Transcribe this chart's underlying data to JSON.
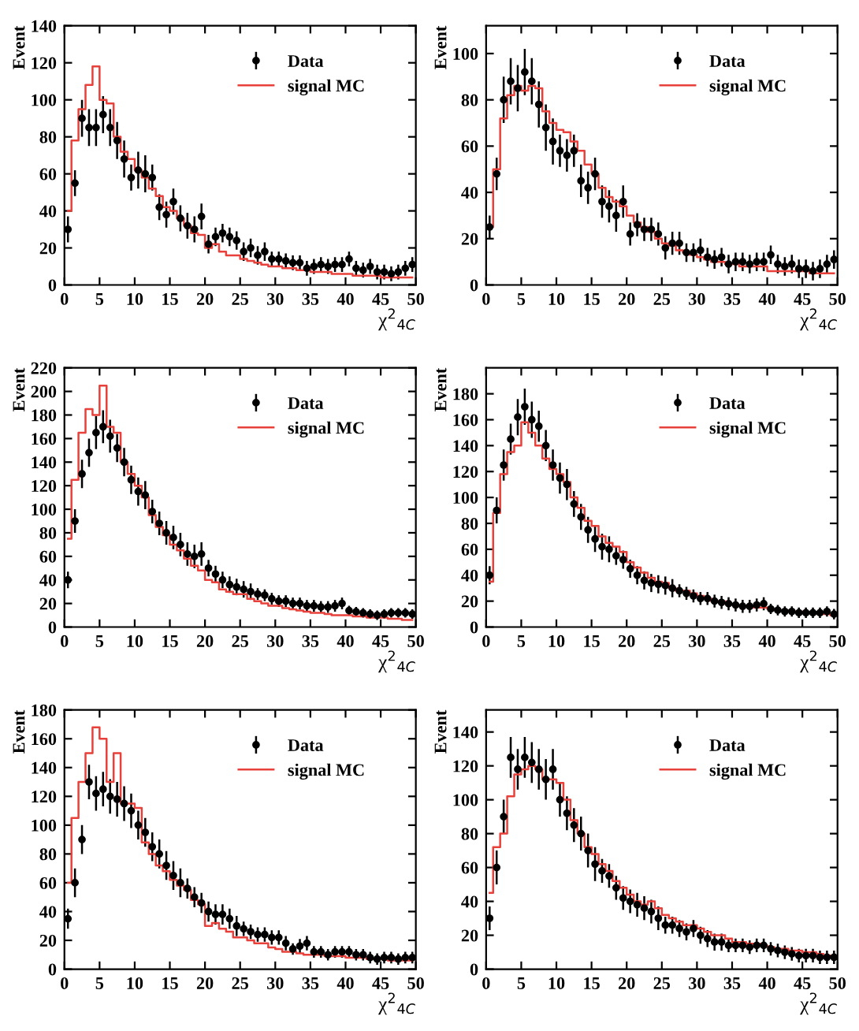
{
  "chart_data": [
    {
      "type": "scatter",
      "xlabel": "χ$^{2}$$_{4C}$",
      "ylabel": "Event",
      "legend": "top right",
      "grid": false,
      "xlim": [
        0,
        50
      ],
      "xticks": [
        0,
        5,
        10,
        15,
        20,
        25,
        30,
        35,
        40,
        45,
        50
      ],
      "ylim": [
        0,
        140
      ],
      "yticks": [
        0,
        20,
        40,
        60,
        80,
        100,
        120,
        140
      ],
      "x": [
        0.5,
        1.5,
        2.5,
        3.5,
        4.5,
        5.5,
        6.5,
        7.5,
        8.5,
        9.5,
        10.5,
        11.5,
        12.5,
        13.5,
        14.5,
        15.5,
        16.5,
        17.5,
        18.5,
        19.5,
        20.5,
        21.5,
        22.5,
        23.5,
        24.5,
        25.5,
        26.5,
        27.5,
        28.5,
        29.5,
        30.5,
        31.5,
        32.5,
        33.5,
        34.5,
        35.5,
        36.5,
        37.5,
        38.5,
        39.5,
        40.5,
        41.5,
        42.5,
        43.5,
        44.5,
        45.5,
        46.5,
        47.5,
        48.5,
        49.5
      ],
      "series": [
        {
          "name": "Data",
          "marker": "circle",
          "color": "#000000",
          "values": [
            30,
            55,
            90,
            85,
            85,
            92,
            85,
            78,
            68,
            58,
            62,
            60,
            58,
            42,
            38,
            45,
            36,
            32,
            30,
            37,
            22,
            26,
            28,
            26,
            24,
            18,
            20,
            16,
            18,
            14,
            14,
            13,
            12,
            12,
            9,
            10,
            11,
            10,
            11,
            11,
            14,
            9,
            8,
            10,
            7,
            7,
            6,
            7,
            9,
            11
          ],
          "errors": [
            7,
            7,
            10,
            10,
            10,
            10,
            10,
            10,
            10,
            7,
            10,
            10,
            7,
            7,
            7,
            7,
            7,
            7,
            7,
            7,
            5,
            5,
            5,
            5,
            5,
            5,
            5,
            5,
            5,
            4,
            4,
            4,
            4,
            4,
            4,
            4,
            4,
            4,
            4,
            4,
            4,
            4,
            4,
            4,
            4,
            4,
            4,
            4,
            4,
            4
          ]
        },
        {
          "name": "signal MC",
          "type": "step",
          "color": "#e8403a",
          "values": [
            40,
            78,
            95,
            108,
            118,
            100,
            98,
            80,
            72,
            68,
            62,
            58,
            52,
            48,
            42,
            40,
            36,
            32,
            28,
            27,
            20,
            22,
            18,
            16,
            16,
            14,
            13,
            12,
            11,
            10,
            10,
            9,
            9,
            8,
            8,
            7,
            7,
            7,
            6,
            6,
            6,
            5,
            5,
            5,
            5,
            4,
            4,
            4,
            4,
            4
          ]
        }
      ]
    },
    {
      "type": "scatter",
      "xlabel": "χ$^{2}$$_{4C}$",
      "ylabel": "Event",
      "legend": "top right",
      "grid": false,
      "xlim": [
        0,
        50
      ],
      "xticks": [
        0,
        5,
        10,
        15,
        20,
        25,
        30,
        35,
        40,
        45,
        50
      ],
      "ylim": [
        0,
        112
      ],
      "yticks": [
        0,
        20,
        40,
        60,
        80,
        100
      ],
      "x": [
        0.5,
        1.5,
        2.5,
        3.5,
        4.5,
        5.5,
        6.5,
        7.5,
        8.5,
        9.5,
        10.5,
        11.5,
        12.5,
        13.5,
        14.5,
        15.5,
        16.5,
        17.5,
        18.5,
        19.5,
        20.5,
        21.5,
        22.5,
        23.5,
        24.5,
        25.5,
        26.5,
        27.5,
        28.5,
        29.5,
        30.5,
        31.5,
        32.5,
        33.5,
        34.5,
        35.5,
        36.5,
        37.5,
        38.5,
        39.5,
        40.5,
        41.5,
        42.5,
        43.5,
        44.5,
        45.5,
        46.5,
        47.5,
        48.5,
        49.5
      ],
      "series": [
        {
          "name": "Data",
          "marker": "circle",
          "color": "#000000",
          "values": [
            25,
            48,
            80,
            88,
            85,
            92,
            88,
            78,
            68,
            62,
            58,
            56,
            58,
            45,
            42,
            48,
            36,
            34,
            30,
            36,
            22,
            26,
            24,
            24,
            22,
            16,
            18,
            18,
            14,
            14,
            15,
            12,
            11,
            12,
            9,
            10,
            10,
            9,
            10,
            10,
            13,
            9,
            8,
            9,
            7,
            7,
            6,
            7,
            9,
            11
          ],
          "errors": [
            5,
            7,
            10,
            10,
            10,
            10,
            10,
            10,
            10,
            10,
            7,
            7,
            7,
            7,
            7,
            7,
            7,
            7,
            7,
            7,
            5,
            5,
            5,
            5,
            5,
            5,
            5,
            5,
            4,
            4,
            5,
            4,
            4,
            4,
            4,
            4,
            4,
            4,
            4,
            4,
            4,
            4,
            4,
            4,
            4,
            4,
            4,
            4,
            4,
            4
          ]
        },
        {
          "name": "signal MC",
          "type": "step",
          "color": "#e8403a",
          "values": [
            25,
            50,
            72,
            82,
            86,
            84,
            86,
            85,
            75,
            70,
            67,
            66,
            62,
            58,
            52,
            48,
            42,
            38,
            36,
            34,
            30,
            27,
            25,
            23,
            20,
            18,
            17,
            15,
            14,
            13,
            12,
            11,
            10,
            10,
            9,
            9,
            8,
            8,
            8,
            8,
            6,
            6,
            6,
            6,
            6,
            6,
            5,
            5,
            5,
            5
          ]
        }
      ]
    },
    {
      "type": "scatter",
      "xlabel": "χ$^{2}$$_{4C}$",
      "ylabel": "Event",
      "legend": "top right",
      "grid": false,
      "xlim": [
        0,
        50
      ],
      "xticks": [
        0,
        5,
        10,
        15,
        20,
        25,
        30,
        35,
        40,
        45,
        50
      ],
      "ylim": [
        0,
        220
      ],
      "yticks": [
        0,
        20,
        40,
        60,
        80,
        100,
        120,
        140,
        160,
        180,
        200,
        220
      ],
      "x": [
        0.5,
        1.5,
        2.5,
        3.5,
        4.5,
        5.5,
        6.5,
        7.5,
        8.5,
        9.5,
        10.5,
        11.5,
        12.5,
        13.5,
        14.5,
        15.5,
        16.5,
        17.5,
        18.5,
        19.5,
        20.5,
        21.5,
        22.5,
        23.5,
        24.5,
        25.5,
        26.5,
        27.5,
        28.5,
        29.5,
        30.5,
        31.5,
        32.5,
        33.5,
        34.5,
        35.5,
        36.5,
        37.5,
        38.5,
        39.5,
        40.5,
        41.5,
        42.5,
        43.5,
        44.5,
        45.5,
        46.5,
        47.5,
        48.5,
        49.5
      ],
      "series": [
        {
          "name": "Data",
          "marker": "circle",
          "color": "#000000",
          "values": [
            40,
            90,
            130,
            148,
            165,
            170,
            162,
            152,
            140,
            125,
            115,
            112,
            98,
            88,
            80,
            76,
            70,
            62,
            60,
            62,
            50,
            45,
            40,
            36,
            34,
            32,
            30,
            28,
            27,
            24,
            22,
            22,
            20,
            20,
            18,
            18,
            17,
            17,
            18,
            20,
            14,
            13,
            12,
            11,
            10,
            11,
            12,
            12,
            12,
            11
          ],
          "errors": [
            7,
            10,
            12,
            12,
            14,
            14,
            14,
            12,
            12,
            12,
            12,
            12,
            10,
            10,
            10,
            10,
            10,
            10,
            10,
            10,
            7,
            7,
            7,
            7,
            7,
            7,
            7,
            5,
            5,
            5,
            5,
            5,
            5,
            5,
            5,
            5,
            5,
            5,
            5,
            5,
            4,
            4,
            4,
            4,
            4,
            4,
            4,
            4,
            4,
            4
          ]
        },
        {
          "name": "signal MC",
          "type": "step",
          "color": "#e8403a",
          "values": [
            75,
            125,
            165,
            185,
            180,
            205,
            170,
            165,
            140,
            130,
            120,
            110,
            95,
            85,
            78,
            70,
            65,
            58,
            52,
            48,
            40,
            38,
            32,
            30,
            28,
            28,
            24,
            22,
            20,
            18,
            18,
            16,
            15,
            14,
            13,
            12,
            12,
            11,
            10,
            10,
            10,
            9,
            9,
            8,
            8,
            8,
            7,
            7,
            6,
            6
          ]
        }
      ]
    },
    {
      "type": "scatter",
      "xlabel": "χ$^{2}$$_{4C}$",
      "ylabel": "Event",
      "legend": "top right",
      "grid": false,
      "xlim": [
        0,
        50
      ],
      "xticks": [
        0,
        5,
        10,
        15,
        20,
        25,
        30,
        35,
        40,
        45,
        50
      ],
      "ylim": [
        0,
        200
      ],
      "yticks": [
        0,
        20,
        40,
        60,
        80,
        100,
        120,
        140,
        160,
        180
      ],
      "x": [
        0.5,
        1.5,
        2.5,
        3.5,
        4.5,
        5.5,
        6.5,
        7.5,
        8.5,
        9.5,
        10.5,
        11.5,
        12.5,
        13.5,
        14.5,
        15.5,
        16.5,
        17.5,
        18.5,
        19.5,
        20.5,
        21.5,
        22.5,
        23.5,
        24.5,
        25.5,
        26.5,
        27.5,
        28.5,
        29.5,
        30.5,
        31.5,
        32.5,
        33.5,
        34.5,
        35.5,
        36.5,
        37.5,
        38.5,
        39.5,
        40.5,
        41.5,
        42.5,
        43.5,
        44.5,
        45.5,
        46.5,
        47.5,
        48.5,
        49.5
      ],
      "series": [
        {
          "name": "Data",
          "marker": "circle",
          "color": "#000000",
          "values": [
            40,
            90,
            125,
            145,
            162,
            170,
            160,
            155,
            140,
            125,
            115,
            110,
            95,
            85,
            75,
            68,
            62,
            60,
            55,
            52,
            45,
            40,
            36,
            34,
            33,
            32,
            30,
            28,
            26,
            24,
            22,
            22,
            20,
            19,
            18,
            17,
            16,
            16,
            17,
            18,
            14,
            13,
            12,
            12,
            11,
            11,
            11,
            11,
            12,
            10
          ],
          "errors": [
            7,
            10,
            12,
            12,
            14,
            14,
            14,
            12,
            12,
            12,
            12,
            12,
            10,
            10,
            10,
            10,
            10,
            10,
            7,
            7,
            7,
            7,
            7,
            7,
            7,
            7,
            7,
            5,
            5,
            5,
            5,
            5,
            5,
            5,
            5,
            5,
            5,
            5,
            5,
            5,
            4,
            4,
            4,
            4,
            4,
            4,
            4,
            4,
            4,
            4
          ]
        },
        {
          "name": "signal MC",
          "type": "step",
          "color": "#e8403a",
          "values": [
            35,
            88,
            118,
            135,
            140,
            158,
            150,
            140,
            130,
            122,
            118,
            112,
            100,
            92,
            82,
            78,
            70,
            65,
            62,
            58,
            50,
            46,
            42,
            38,
            35,
            34,
            30,
            28,
            28,
            26,
            24,
            22,
            20,
            20,
            18,
            17,
            16,
            16,
            15,
            15,
            14,
            13,
            13,
            12,
            12,
            11,
            11,
            10,
            10,
            9
          ]
        }
      ]
    },
    {
      "type": "scatter",
      "xlabel": "χ$^{2}$$_{4C}$",
      "ylabel": "Event",
      "legend": "top right",
      "grid": false,
      "xlim": [
        0,
        50
      ],
      "xticks": [
        0,
        5,
        10,
        15,
        20,
        25,
        30,
        35,
        40,
        45,
        50
      ],
      "ylim": [
        0,
        180
      ],
      "yticks": [
        0,
        20,
        40,
        60,
        80,
        100,
        120,
        140,
        160,
        180
      ],
      "x": [
        0.5,
        1.5,
        2.5,
        3.5,
        4.5,
        5.5,
        6.5,
        7.5,
        8.5,
        9.5,
        10.5,
        11.5,
        12.5,
        13.5,
        14.5,
        15.5,
        16.5,
        17.5,
        18.5,
        19.5,
        20.5,
        21.5,
        22.5,
        23.5,
        24.5,
        25.5,
        26.5,
        27.5,
        28.5,
        29.5,
        30.5,
        31.5,
        32.5,
        33.5,
        34.5,
        35.5,
        36.5,
        37.5,
        38.5,
        39.5,
        40.5,
        41.5,
        42.5,
        43.5,
        44.5,
        45.5,
        46.5,
        47.5,
        48.5,
        49.5
      ],
      "series": [
        {
          "name": "Data",
          "marker": "circle",
          "color": "#000000",
          "values": [
            35,
            60,
            90,
            130,
            122,
            125,
            120,
            118,
            115,
            110,
            100,
            95,
            85,
            80,
            72,
            65,
            60,
            56,
            50,
            46,
            40,
            38,
            38,
            35,
            30,
            28,
            26,
            24,
            24,
            22,
            22,
            18,
            14,
            16,
            18,
            12,
            12,
            10,
            12,
            12,
            12,
            10,
            10,
            8,
            7,
            8,
            8,
            7,
            8,
            8
          ],
          "errors": [
            7,
            10,
            10,
            12,
            12,
            12,
            12,
            12,
            12,
            12,
            10,
            10,
            10,
            10,
            10,
            10,
            10,
            7,
            7,
            7,
            7,
            7,
            7,
            7,
            7,
            5,
            5,
            5,
            5,
            5,
            5,
            5,
            4,
            5,
            5,
            4,
            4,
            4,
            4,
            4,
            4,
            4,
            4,
            4,
            4,
            4,
            4,
            4,
            4,
            4
          ]
        },
        {
          "name": "signal MC",
          "type": "step",
          "color": "#e8403a",
          "values": [
            60,
            105,
            130,
            150,
            168,
            160,
            130,
            150,
            115,
            115,
            112,
            88,
            80,
            72,
            68,
            62,
            58,
            55,
            48,
            45,
            30,
            32,
            28,
            26,
            22,
            22,
            20,
            18,
            18,
            15,
            14,
            12,
            12,
            11,
            10,
            10,
            10,
            9,
            9,
            9,
            8,
            8,
            8,
            7,
            7,
            7,
            6,
            6,
            6,
            6
          ]
        }
      ]
    },
    {
      "type": "scatter",
      "xlabel": "χ$^{2}$$_{4C}$",
      "ylabel": "Event",
      "legend": "top right",
      "grid": false,
      "xlim": [
        0,
        50
      ],
      "xticks": [
        0,
        5,
        10,
        15,
        20,
        25,
        30,
        35,
        40,
        45,
        50
      ],
      "ylim": [
        0,
        153
      ],
      "yticks": [
        0,
        20,
        40,
        60,
        80,
        100,
        120,
        140
      ],
      "x": [
        0.5,
        1.5,
        2.5,
        3.5,
        4.5,
        5.5,
        6.5,
        7.5,
        8.5,
        9.5,
        10.5,
        11.5,
        12.5,
        13.5,
        14.5,
        15.5,
        16.5,
        17.5,
        18.5,
        19.5,
        20.5,
        21.5,
        22.5,
        23.5,
        24.5,
        25.5,
        26.5,
        27.5,
        28.5,
        29.5,
        30.5,
        31.5,
        32.5,
        33.5,
        34.5,
        35.5,
        36.5,
        37.5,
        38.5,
        39.5,
        40.5,
        41.5,
        42.5,
        43.5,
        44.5,
        45.5,
        46.5,
        47.5,
        48.5,
        49.5
      ],
      "series": [
        {
          "name": "Data",
          "marker": "circle",
          "color": "#000000",
          "values": [
            30,
            60,
            90,
            125,
            118,
            125,
            122,
            118,
            112,
            118,
            100,
            92,
            85,
            80,
            70,
            62,
            58,
            55,
            48,
            42,
            40,
            38,
            36,
            34,
            30,
            26,
            26,
            24,
            22,
            24,
            20,
            18,
            16,
            16,
            14,
            14,
            14,
            13,
            14,
            14,
            12,
            11,
            10,
            9,
            8,
            8,
            8,
            7,
            7,
            7
          ],
          "errors": [
            7,
            10,
            10,
            12,
            12,
            12,
            12,
            12,
            12,
            12,
            10,
            10,
            10,
            10,
            10,
            10,
            7,
            7,
            7,
            7,
            7,
            7,
            7,
            7,
            7,
            5,
            5,
            5,
            5,
            5,
            5,
            5,
            5,
            5,
            4,
            4,
            4,
            4,
            4,
            4,
            4,
            4,
            4,
            4,
            4,
            4,
            4,
            4,
            4,
            4
          ]
        },
        {
          "name": "signal MC",
          "type": "step",
          "color": "#e8403a",
          "values": [
            45,
            72,
            80,
            102,
            115,
            118,
            120,
            118,
            112,
            112,
            110,
            100,
            88,
            80,
            72,
            68,
            62,
            58,
            52,
            48,
            44,
            40,
            38,
            40,
            36,
            32,
            30,
            28,
            26,
            26,
            24,
            22,
            20,
            20,
            18,
            16,
            16,
            15,
            15,
            14,
            13,
            12,
            12,
            11,
            11,
            10,
            10,
            9,
            8,
            8
          ]
        }
      ]
    }
  ]
}
